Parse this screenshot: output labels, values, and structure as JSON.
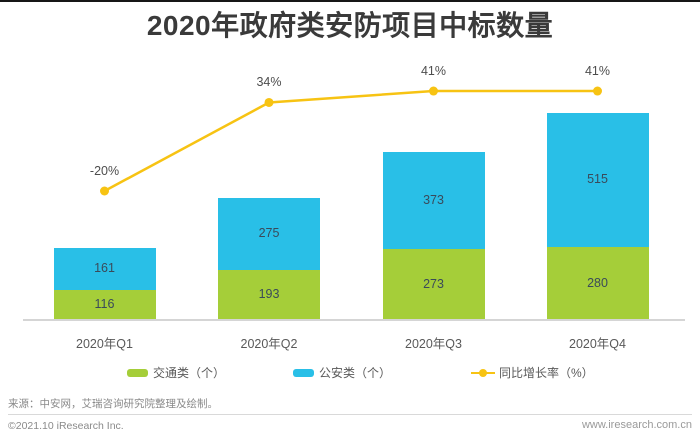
{
  "chart_data": {
    "type": "bar",
    "stacked": true,
    "title": "2020年政府类安防项目中标数量",
    "categories": [
      "2020年Q1",
      "2020年Q2",
      "2020年Q3",
      "2020年Q4"
    ],
    "series": [
      {
        "name": "交通类（个）",
        "kind": "bar",
        "color": "#a5ce39",
        "values": [
          116,
          193,
          273,
          280
        ]
      },
      {
        "name": "公安类（个）",
        "kind": "bar",
        "color": "#29bfe7",
        "values": [
          161,
          275,
          373,
          515
        ]
      },
      {
        "name": "同比增长率（%）",
        "kind": "line",
        "color": "#f7c313",
        "values": [
          -20,
          34,
          41,
          41
        ],
        "point_labels": [
          "-20%",
          "34%",
          "41%",
          "41%"
        ]
      }
    ],
    "legend_position": "bottom",
    "grid": false,
    "value_labels_shown": true,
    "colors": {
      "bar_value_text": "#3a4a5a",
      "axis_label_text": "#595959",
      "growth_label_text": "#4d4d4d",
      "axis_line": "#d5d5d5",
      "title_text": "#3a3a3a"
    }
  },
  "footer": {
    "source": "来源：中安网，艾瑞咨询研究院整理及绘制。",
    "copyright": "©2021.10 iResearch Inc.",
    "website": "www.iresearch.com.cn"
  }
}
